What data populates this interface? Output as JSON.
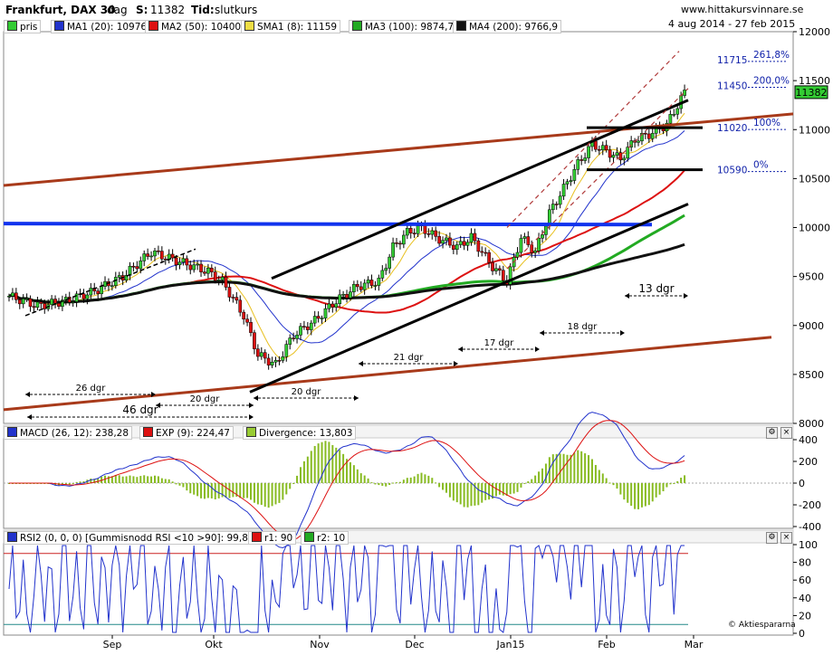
{
  "header": {
    "title": "Frankfurt, DAX 30",
    "period": "dag",
    "s_label": "S:",
    "s_value": "11382",
    "tid_label": "Tid:",
    "tid_value": "slutkurs",
    "site": "www.hittakursvinnare.se",
    "range": "4 aug 2014 - 27 feb 2015"
  },
  "legend": [
    {
      "label": "pris",
      "color": "#33cc33"
    },
    {
      "label": "MA1 (20): 10976",
      "color": "#2233cc"
    },
    {
      "label": "MA2 (50): 10400",
      "color": "#dd1111"
    },
    {
      "label": "SMA1 (8): 11159",
      "color": "#eedd44"
    },
    {
      "label": "MA3 (100): 9874,7",
      "color": "#22aa22"
    },
    {
      "label": "MA4 (200): 9766,9",
      "color": "#111111"
    }
  ],
  "price_badge": "11382",
  "chart_data": {
    "type": "candlestick",
    "x_ticks": [
      "Sep",
      "Okt",
      "Nov",
      "Dec",
      "Jan15",
      "Feb",
      "Mar"
    ],
    "ylim": [
      8000,
      12000
    ],
    "y_ticks": [
      8000,
      8500,
      9000,
      9500,
      10000,
      10500,
      11000,
      11500,
      12000
    ],
    "fib_levels": [
      {
        "value": 11715,
        "label": "261,8%"
      },
      {
        "value": 11450,
        "label": "200,0%"
      },
      {
        "value": 11020,
        "label": "100%"
      },
      {
        "value": 10590,
        "label": "0%"
      }
    ],
    "annotations": [
      "26 dgr",
      "20 dgr",
      "46 dgr",
      "20 dgr",
      "21 dgr",
      "17 dgr",
      "18 dgr",
      "13 dgr"
    ],
    "macd": {
      "legend": [
        "MACD (26, 12): 238,28",
        "EXP (9): 224,47",
        "Divergence: 13,803"
      ],
      "ylim": [
        -400,
        400
      ],
      "y_ticks": [
        400,
        200,
        0,
        -200,
        -400
      ]
    },
    "rsi": {
      "legend": [
        "RSI2 (0, 0, 0) [Gummisnodd RSI <10 >90]: 99,849",
        "r1: 90",
        "r2: 10"
      ],
      "ylim": [
        0,
        100
      ],
      "y_ticks": [
        100,
        80,
        60,
        40,
        20,
        0
      ]
    },
    "copyright": "© Aktiespararna"
  }
}
